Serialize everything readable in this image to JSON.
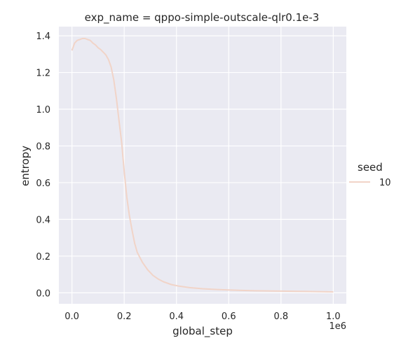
{
  "chart_data": {
    "type": "line",
    "title": "exp_name = qppo-simple-outscale-qlr0.1e-3",
    "xlabel": "global_step",
    "ylabel": "entropy",
    "x_offset_label": "1e6",
    "xlim": [
      -0.05,
      1.05
    ],
    "ylim": [
      -0.06,
      1.45
    ],
    "x_ticks": [
      0.0,
      0.2,
      0.4,
      0.6,
      0.8,
      1.0
    ],
    "x_tick_labels": [
      "0.0",
      "0.2",
      "0.4",
      "0.6",
      "0.8",
      "1.0"
    ],
    "y_ticks": [
      0.0,
      0.2,
      0.4,
      0.6,
      0.8,
      1.0,
      1.2,
      1.4
    ],
    "y_tick_labels": [
      "0.0",
      "0.2",
      "0.4",
      "0.6",
      "0.8",
      "1.0",
      "1.2",
      "1.4"
    ],
    "grid": true,
    "legend": {
      "title": "seed",
      "placement": "right",
      "entries": [
        {
          "label": "10",
          "color": "#f1d4c8"
        }
      ]
    },
    "series": [
      {
        "name": "10",
        "color": "#f1d4c8",
        "x": [
          0.0,
          0.01,
          0.02,
          0.03,
          0.04,
          0.05,
          0.06,
          0.07,
          0.08,
          0.09,
          0.1,
          0.11,
          0.12,
          0.13,
          0.14,
          0.15,
          0.16,
          0.17,
          0.18,
          0.19,
          0.2,
          0.21,
          0.22,
          0.23,
          0.24,
          0.25,
          0.27,
          0.29,
          0.31,
          0.33,
          0.35,
          0.38,
          0.41,
          0.45,
          0.5,
          0.55,
          0.6,
          0.65,
          0.7,
          0.8,
          0.9,
          1.0
        ],
        "y": [
          1.32,
          1.36,
          1.375,
          1.38,
          1.385,
          1.385,
          1.38,
          1.375,
          1.36,
          1.35,
          1.335,
          1.325,
          1.31,
          1.295,
          1.27,
          1.23,
          1.16,
          1.06,
          0.94,
          0.82,
          0.66,
          0.52,
          0.42,
          0.34,
          0.27,
          0.22,
          0.165,
          0.125,
          0.095,
          0.075,
          0.06,
          0.045,
          0.036,
          0.028,
          0.022,
          0.018,
          0.015,
          0.013,
          0.011,
          0.009,
          0.007,
          0.005
        ]
      }
    ]
  },
  "colors": {
    "plot_background": "#eaeaf2",
    "grid": "#ffffff",
    "series": "#f1d4c8"
  }
}
